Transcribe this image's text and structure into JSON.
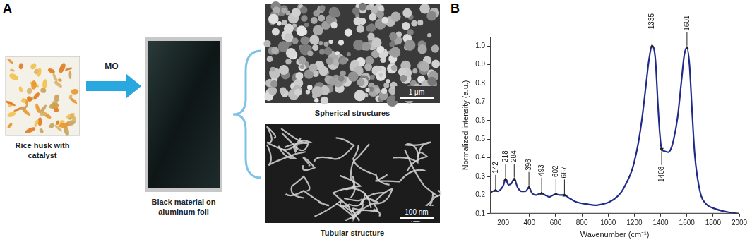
{
  "panel_a": {
    "letter": "A",
    "photo_label": "Rice husk with catalyst",
    "arrow_label": "MO",
    "foil_label": "Black material on aluminum foil",
    "sem_images": [
      {
        "label": "Spherical structures",
        "scale_bar": "1 μm"
      },
      {
        "label": "Tubular structure",
        "scale_bar": "100 nm"
      }
    ]
  },
  "chart_data": {
    "type": "line",
    "panel_label": "B",
    "x_label": "Wavenumber (cm⁻¹)",
    "y_label": "Normalized intensity (a.u.)",
    "x": [
      100,
      120,
      142,
      160,
      180,
      200,
      218,
      240,
      260,
      284,
      310,
      340,
      370,
      396,
      420,
      450,
      470,
      493,
      520,
      550,
      580,
      602,
      630,
      667,
      700,
      750,
      800,
      850,
      900,
      950,
      1000,
      1050,
      1100,
      1150,
      1180,
      1200,
      1230,
      1260,
      1290,
      1310,
      1335,
      1360,
      1380,
      1395,
      1408,
      1430,
      1460,
      1480,
      1500,
      1530,
      1560,
      1580,
      1601,
      1620,
      1640,
      1660,
      1700,
      1750,
      1800,
      1900,
      2000
    ],
    "values": [
      0.21,
      0.22,
      0.225,
      0.22,
      0.23,
      0.25,
      0.285,
      0.255,
      0.26,
      0.285,
      0.24,
      0.22,
      0.22,
      0.24,
      0.21,
      0.2,
      0.205,
      0.21,
      0.2,
      0.19,
      0.2,
      0.205,
      0.2,
      0.2,
      0.185,
      0.165,
      0.155,
      0.15,
      0.145,
      0.15,
      0.16,
      0.18,
      0.215,
      0.28,
      0.33,
      0.38,
      0.48,
      0.62,
      0.8,
      0.92,
      1.0,
      0.93,
      0.68,
      0.52,
      0.445,
      0.435,
      0.43,
      0.45,
      0.5,
      0.62,
      0.82,
      0.95,
      0.99,
      0.9,
      0.65,
      0.42,
      0.22,
      0.15,
      0.13,
      0.11,
      0.1
    ],
    "color": "#1f2a8a",
    "xlim": [
      100,
      2000
    ],
    "xticks": [
      200,
      400,
      600,
      800,
      1000,
      1200,
      1400,
      1600,
      1800,
      2000
    ],
    "ylim": [
      0.1,
      1.05
    ],
    "yticks": [
      0.1,
      0.2,
      0.3,
      0.4,
      0.5,
      0.6,
      0.7,
      0.8,
      0.9,
      {
        "value": 1,
        "label": "1.0"
      }
    ],
    "grid": false,
    "annotations": [
      142,
      218,
      284,
      396,
      493,
      602,
      667,
      1335,
      1408,
      1601
    ]
  }
}
